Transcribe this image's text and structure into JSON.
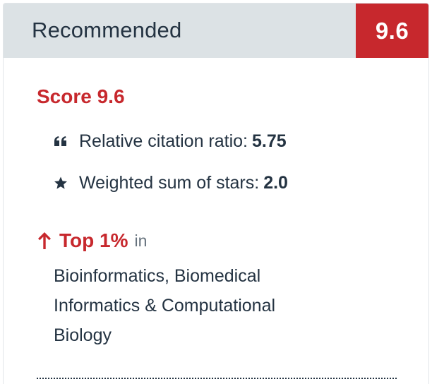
{
  "header": {
    "title": "Recommended",
    "score_badge": "9.6"
  },
  "score": {
    "title": "Score 9.6"
  },
  "metrics": [
    {
      "icon": "quote-icon",
      "label": "Relative citation ratio:",
      "value": "5.75"
    },
    {
      "icon": "star-icon",
      "label": "Weighted sum of stars:",
      "value": "2.0"
    }
  ],
  "ranking": {
    "icon": "arrow-up-icon",
    "top": "Top 1%",
    "in": "in",
    "field": "Bioinformatics, Biomedical Informatics & Computational Biology"
  },
  "colors": {
    "accent": "#c7282d",
    "header_bg": "#dce2e5",
    "text": "#243342",
    "muted": "#66727d"
  }
}
